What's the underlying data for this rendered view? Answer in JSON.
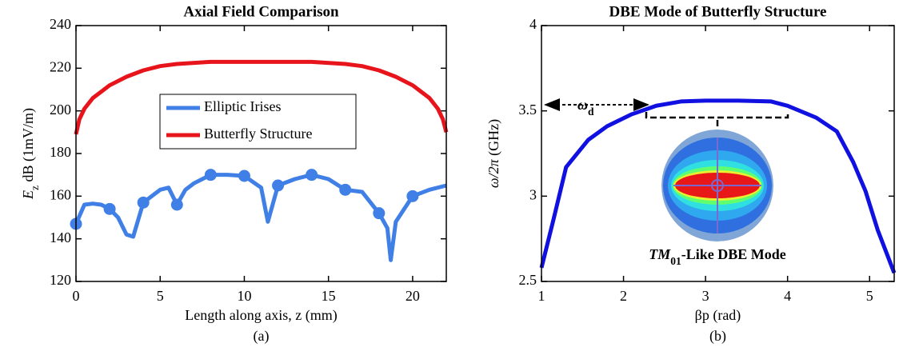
{
  "chart_data": [
    {
      "type": "line",
      "title": "Axial Field Comparison",
      "xlabel": "Length along axis, z (mm)",
      "ylabel": {
        "main": "E",
        "sub": "z",
        "rest": " dB (1mV/m)"
      },
      "caption": "(a)",
      "xlim": [
        0,
        22
      ],
      "xticks": [
        0,
        5,
        10,
        15,
        20
      ],
      "ylim": [
        120,
        240
      ],
      "yticks": [
        120,
        140,
        160,
        180,
        200,
        220,
        240
      ],
      "legend": "center",
      "marker_step": 2,
      "series": [
        {
          "name": "Elliptic Irises",
          "color": "#3f7fe6",
          "markers": true,
          "x": [
            0,
            0.5,
            1,
            1.5,
            2,
            2.5,
            3,
            3.4,
            4,
            5,
            5.5,
            6,
            6.5,
            7,
            8,
            9,
            10,
            11,
            11.4,
            12,
            13,
            14,
            15,
            16,
            17,
            18,
            18.5,
            18.7,
            19,
            20,
            21,
            22
          ],
          "values": [
            147,
            156,
            156.5,
            156,
            154,
            150,
            142,
            141,
            157,
            163,
            164,
            156,
            163,
            166,
            170,
            170,
            169.5,
            164,
            148,
            165,
            168,
            170,
            168,
            163,
            162,
            152,
            145,
            130,
            148,
            160,
            163,
            165
          ]
        },
        {
          "name": "Butterfly Structure",
          "color": "#e8141c",
          "markers": false,
          "x": [
            0,
            0.2,
            0.5,
            1,
            2,
            3,
            4,
            5,
            6,
            8,
            10,
            12,
            14,
            16,
            17,
            18,
            19,
            20,
            21,
            21.5,
            21.8,
            22
          ],
          "values": [
            189,
            196,
            201,
            206,
            212,
            216,
            219,
            221,
            222,
            223,
            223,
            223,
            223,
            222,
            221,
            219,
            216,
            212,
            206,
            201,
            196,
            190
          ]
        }
      ]
    },
    {
      "type": "line",
      "title": "DBE Mode of Butterfly Structure",
      "xlabel": "βp (rad)",
      "ylabel": {
        "main": "ω/2π",
        "sub": "",
        "rest": " (GHz)"
      },
      "caption": "(b)",
      "xlim": [
        1,
        5.3
      ],
      "xticks": [
        1,
        2,
        3,
        4,
        5
      ],
      "ylim": [
        2.5,
        4
      ],
      "yticks": [
        2.5,
        3,
        3.5,
        4
      ],
      "annotations": [
        {
          "text": "ω",
          "sub": "d",
          "rest": ""
        },
        {
          "text": "TM",
          "sub": "01",
          "rest": "-Like DBE Mode"
        }
      ],
      "series": [
        {
          "color": "#1010e0",
          "markers": false,
          "x": [
            1,
            1.15,
            1.3,
            1.57,
            1.8,
            2.1,
            2.4,
            2.7,
            3,
            3.4,
            3.8,
            4,
            4.35,
            4.6,
            4.8,
            4.95,
            5.1,
            5.3
          ],
          "values": [
            2.58,
            2.87,
            3.17,
            3.33,
            3.41,
            3.48,
            3.53,
            3.555,
            3.56,
            3.56,
            3.555,
            3.53,
            3.46,
            3.38,
            3.2,
            3.03,
            2.8,
            2.55
          ]
        }
      ]
    }
  ]
}
